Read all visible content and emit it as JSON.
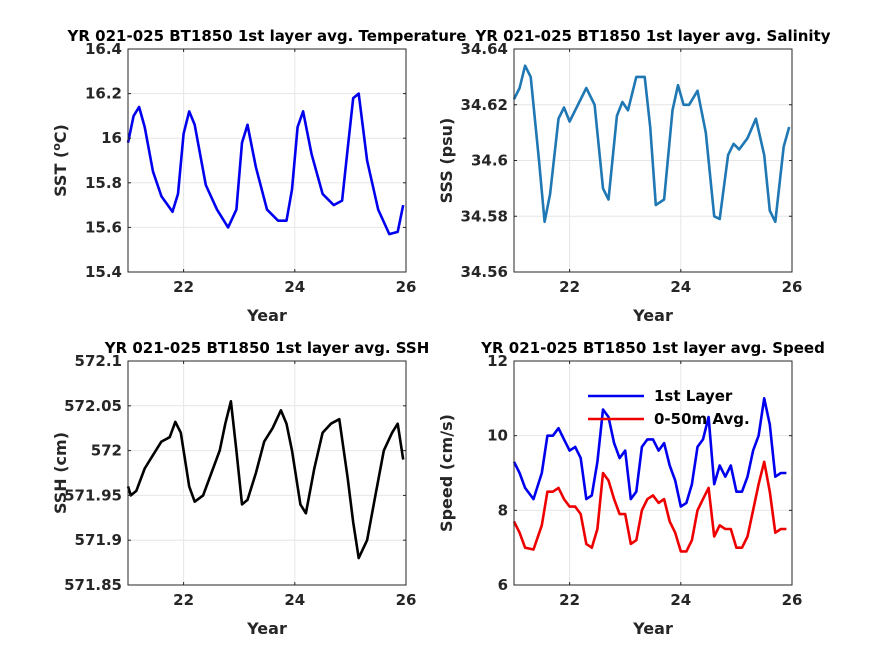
{
  "chart_data": [
    {
      "type": "line",
      "title": "YR 021-025 BT1850 1st layer avg. Temperature",
      "xlabel": "Year",
      "ylabel": "SST (°C)",
      "ylabel_sup": "o",
      "xlim": [
        21,
        26
      ],
      "ylim": [
        15.4,
        16.4
      ],
      "xticks": [
        22,
        24,
        26
      ],
      "xtick_labels": [
        "22",
        "24",
        "26"
      ],
      "yticks": [
        15.4,
        15.6,
        15.8,
        16,
        16.2,
        16.4
      ],
      "ytick_labels": [
        "15.4",
        "15.6",
        "15.8",
        "16",
        "16.2",
        "16.4"
      ],
      "grid": true,
      "series": [
        {
          "color": "#0000ee",
          "x": [
            21.0,
            21.1,
            21.2,
            21.3,
            21.45,
            21.6,
            21.8,
            21.9,
            22.0,
            22.1,
            22.2,
            22.4,
            22.6,
            22.8,
            22.95,
            23.05,
            23.15,
            23.3,
            23.5,
            23.7,
            23.85,
            23.95,
            24.05,
            24.15,
            24.3,
            24.5,
            24.7,
            24.85,
            24.95,
            25.05,
            25.15,
            25.3,
            25.5,
            25.7,
            25.85,
            25.95
          ],
          "y": [
            15.98,
            16.1,
            16.14,
            16.05,
            15.85,
            15.74,
            15.67,
            15.75,
            16.02,
            16.12,
            16.06,
            15.79,
            15.68,
            15.6,
            15.68,
            15.98,
            16.06,
            15.87,
            15.68,
            15.63,
            15.63,
            15.77,
            16.05,
            16.12,
            15.93,
            15.75,
            15.7,
            15.72,
            15.95,
            16.18,
            16.2,
            15.9,
            15.68,
            15.57,
            15.58,
            15.7
          ]
        }
      ]
    },
    {
      "type": "line",
      "title": "YR 021-025 BT1850 1st layer avg. Salinity",
      "xlabel": "Year",
      "ylabel": "SSS (psu)",
      "xlim": [
        21,
        26
      ],
      "ylim": [
        34.56,
        34.64
      ],
      "xticks": [
        22,
        24,
        26
      ],
      "xtick_labels": [
        "22",
        "24",
        "26"
      ],
      "yticks": [
        34.56,
        34.58,
        34.6,
        34.62,
        34.64
      ],
      "ytick_labels": [
        "34.56",
        "34.58",
        "34.6",
        "34.62",
        "34.64"
      ],
      "grid": true,
      "series": [
        {
          "color": "#1f77b4",
          "x": [
            21.0,
            21.1,
            21.2,
            21.3,
            21.45,
            21.55,
            21.65,
            21.8,
            21.9,
            22.0,
            22.1,
            22.3,
            22.45,
            22.6,
            22.7,
            22.85,
            22.95,
            23.05,
            23.2,
            23.35,
            23.45,
            23.55,
            23.7,
            23.85,
            23.95,
            24.05,
            24.15,
            24.3,
            24.45,
            24.6,
            24.7,
            24.85,
            24.95,
            25.05,
            25.2,
            25.35,
            25.5,
            25.6,
            25.7,
            25.85,
            25.95
          ],
          "y": [
            34.622,
            34.626,
            34.634,
            34.63,
            34.6,
            34.578,
            34.588,
            34.615,
            34.619,
            34.614,
            34.618,
            34.626,
            34.62,
            34.59,
            34.586,
            34.616,
            34.621,
            34.618,
            34.63,
            34.63,
            34.612,
            34.584,
            34.586,
            34.618,
            34.627,
            34.62,
            34.62,
            34.625,
            34.61,
            34.58,
            34.579,
            34.602,
            34.606,
            34.604,
            34.608,
            34.615,
            34.602,
            34.582,
            34.578,
            34.605,
            34.612
          ]
        }
      ]
    },
    {
      "type": "line",
      "title": "YR 021-025 BT1850 1st layer avg. SSH",
      "xlabel": "Year",
      "ylabel": "SSH (cm)",
      "xlim": [
        21,
        26
      ],
      "ylim": [
        571.85,
        572.1
      ],
      "xticks": [
        22,
        24,
        26
      ],
      "xtick_labels": [
        "22",
        "24",
        "26"
      ],
      "yticks": [
        571.85,
        571.9,
        571.95,
        572,
        572.05,
        572.1
      ],
      "ytick_labels": [
        "571.85",
        "571.9",
        "571.95",
        "572",
        "572.05",
        "572.1"
      ],
      "grid": true,
      "series": [
        {
          "color": "#000000",
          "x": [
            21.0,
            21.05,
            21.15,
            21.3,
            21.45,
            21.6,
            21.75,
            21.85,
            21.95,
            22.1,
            22.2,
            22.35,
            22.5,
            22.65,
            22.75,
            22.85,
            22.95,
            23.05,
            23.15,
            23.3,
            23.45,
            23.6,
            23.75,
            23.85,
            23.95,
            24.1,
            24.2,
            24.35,
            24.5,
            24.65,
            24.8,
            24.95,
            25.05,
            25.15,
            25.3,
            25.45,
            25.6,
            25.75,
            25.85,
            25.95
          ],
          "y": [
            571.96,
            571.95,
            571.955,
            571.98,
            571.995,
            572.01,
            572.015,
            572.032,
            572.02,
            571.96,
            571.943,
            571.95,
            571.975,
            572.0,
            572.03,
            572.055,
            572.0,
            571.94,
            571.945,
            571.975,
            572.01,
            572.025,
            572.045,
            572.03,
            572.0,
            571.94,
            571.93,
            571.98,
            572.02,
            572.03,
            572.035,
            571.97,
            571.92,
            571.88,
            571.9,
            571.95,
            572.0,
            572.02,
            572.03,
            571.99
          ]
        }
      ]
    },
    {
      "type": "line",
      "title": "YR 021-025 BT1850 1st layer avg. Speed",
      "xlabel": "Year",
      "ylabel": "Speed (cm/s)",
      "xlim": [
        21,
        26
      ],
      "ylim": [
        6,
        12
      ],
      "xticks": [
        22,
        24,
        26
      ],
      "xtick_labels": [
        "22",
        "24",
        "26"
      ],
      "yticks": [
        6,
        8,
        10,
        12
      ],
      "ytick_labels": [
        "6",
        "8",
        "10",
        "12"
      ],
      "grid": true,
      "legend": "top-right",
      "series": [
        {
          "name": "1st Layer",
          "color": "#0000ee",
          "x": [
            21.0,
            21.1,
            21.2,
            21.35,
            21.5,
            21.6,
            21.7,
            21.8,
            21.9,
            22.0,
            22.1,
            22.2,
            22.3,
            22.4,
            22.5,
            22.6,
            22.7,
            22.8,
            22.9,
            23.0,
            23.1,
            23.2,
            23.3,
            23.4,
            23.5,
            23.6,
            23.7,
            23.8,
            23.9,
            24.0,
            24.1,
            24.2,
            24.3,
            24.4,
            24.5,
            24.6,
            24.7,
            24.8,
            24.9,
            25.0,
            25.1,
            25.2,
            25.3,
            25.4,
            25.5,
            25.6,
            25.7,
            25.8,
            25.9
          ],
          "y": [
            9.3,
            9.0,
            8.6,
            8.3,
            9.0,
            10.0,
            10.0,
            10.2,
            9.9,
            9.6,
            9.7,
            9.4,
            8.3,
            8.4,
            9.3,
            10.7,
            10.5,
            9.8,
            9.4,
            9.6,
            8.3,
            8.5,
            9.7,
            9.9,
            9.9,
            9.6,
            9.8,
            9.2,
            8.8,
            8.1,
            8.2,
            8.7,
            9.7,
            9.9,
            10.5,
            8.7,
            9.2,
            8.9,
            9.2,
            8.5,
            8.5,
            8.9,
            9.6,
            10.0,
            11.0,
            10.3,
            8.9,
            9.0,
            9.0
          ]
        },
        {
          "name": "0-50m Avg.",
          "color": "#ee0000",
          "x": [
            21.0,
            21.1,
            21.2,
            21.35,
            21.5,
            21.6,
            21.7,
            21.8,
            21.9,
            22.0,
            22.1,
            22.2,
            22.3,
            22.4,
            22.5,
            22.6,
            22.7,
            22.8,
            22.9,
            23.0,
            23.1,
            23.2,
            23.3,
            23.4,
            23.5,
            23.6,
            23.7,
            23.8,
            23.9,
            24.0,
            24.1,
            24.2,
            24.3,
            24.4,
            24.5,
            24.6,
            24.7,
            24.8,
            24.9,
            25.0,
            25.1,
            25.2,
            25.3,
            25.4,
            25.5,
            25.6,
            25.7,
            25.8,
            25.9
          ],
          "y": [
            7.7,
            7.4,
            7.0,
            6.95,
            7.6,
            8.5,
            8.5,
            8.6,
            8.3,
            8.1,
            8.1,
            7.9,
            7.1,
            7.0,
            7.5,
            9.0,
            8.8,
            8.3,
            7.9,
            7.9,
            7.1,
            7.2,
            8.0,
            8.3,
            8.4,
            8.2,
            8.3,
            7.7,
            7.4,
            6.9,
            6.9,
            7.2,
            8.0,
            8.3,
            8.6,
            7.3,
            7.6,
            7.5,
            7.5,
            7.0,
            7.0,
            7.3,
            8.0,
            8.7,
            9.3,
            8.5,
            7.4,
            7.5,
            7.5
          ]
        }
      ]
    }
  ]
}
